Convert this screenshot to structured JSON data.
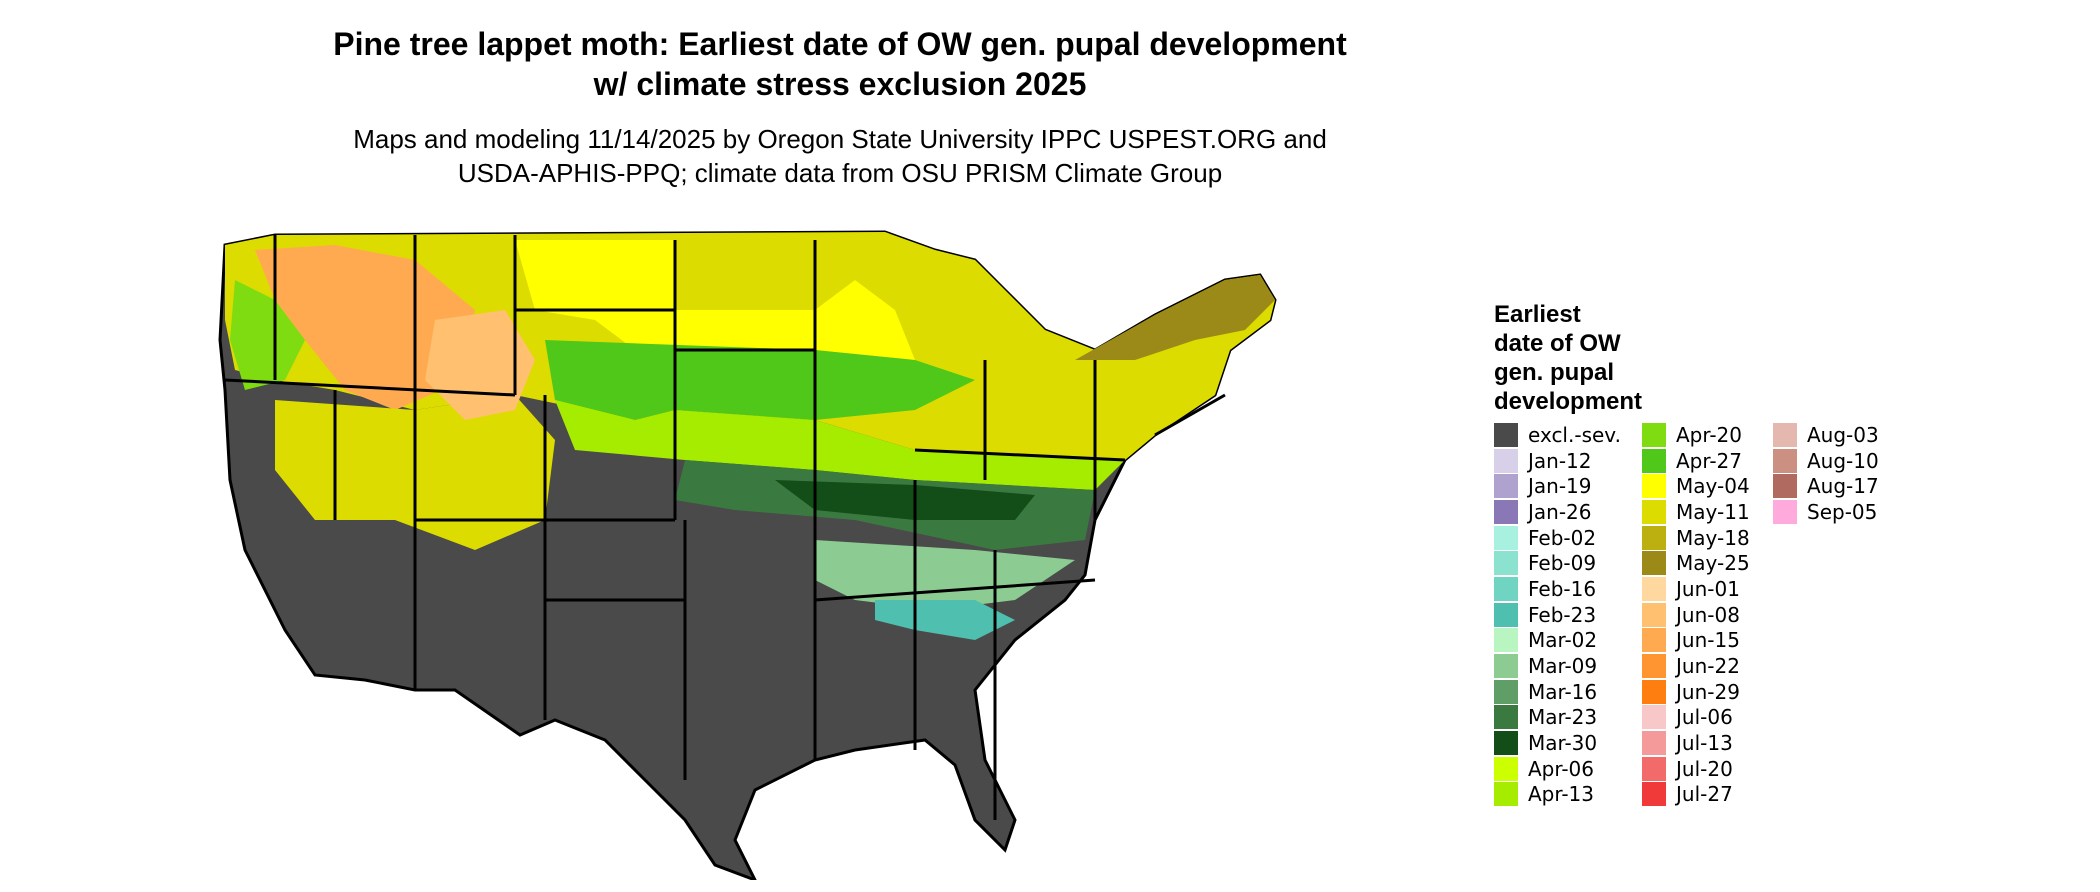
{
  "title_line1": "Pine tree lappet moth: Earliest date of OW gen. pupal development",
  "title_line2": "w/ climate stress exclusion 2025",
  "subtitle_line1": "Maps and modeling 11/14/2025 by Oregon State University IPPC USPEST.ORG and",
  "subtitle_line2": "USDA-APHIS-PPQ; climate data from OSU PRISM Climate Group",
  "legend": {
    "title_lines": [
      "Earliest",
      "date of OW",
      "gen. pupal",
      "development"
    ],
    "columns": [
      [
        {
          "label": "excl.-sev.",
          "color": "#4a4a4a"
        },
        {
          "label": "Jan-12",
          "color": "#d8d0e8"
        },
        {
          "label": "Jan-19",
          "color": "#b0a2cf"
        },
        {
          "label": "Jan-26",
          "color": "#8a78b6"
        },
        {
          "label": "Feb-02",
          "color": "#a8f0e0"
        },
        {
          "label": "Feb-09",
          "color": "#8ae2cf"
        },
        {
          "label": "Feb-16",
          "color": "#6fd4c2"
        },
        {
          "label": "Feb-23",
          "color": "#4fbfb0"
        },
        {
          "label": "Mar-02",
          "color": "#b8f5c0"
        },
        {
          "label": "Mar-09",
          "color": "#8ccc92"
        },
        {
          "label": "Mar-16",
          "color": "#5f9e66"
        },
        {
          "label": "Mar-23",
          "color": "#3a7a40"
        },
        {
          "label": "Mar-30",
          "color": "#134d17"
        },
        {
          "label": "Apr-06",
          "color": "#ccff00"
        },
        {
          "label": "Apr-13",
          "color": "#a6ec00"
        }
      ],
      [
        {
          "label": "Apr-20",
          "color": "#7fdc10"
        },
        {
          "label": "Apr-27",
          "color": "#4fc81a"
        },
        {
          "label": "May-04",
          "color": "#ffff00"
        },
        {
          "label": "May-11",
          "color": "#dcdc00"
        },
        {
          "label": "May-18",
          "color": "#bcb010"
        },
        {
          "label": "May-25",
          "color": "#9c8a18"
        },
        {
          "label": "Jun-01",
          "color": "#ffd8a0"
        },
        {
          "label": "Jun-08",
          "color": "#ffc070"
        },
        {
          "label": "Jun-15",
          "color": "#ffaa50"
        },
        {
          "label": "Jun-22",
          "color": "#ff9530"
        },
        {
          "label": "Jun-29",
          "color": "#ff7e10"
        },
        {
          "label": "Jul-06",
          "color": "#f8c8c8"
        },
        {
          "label": "Jul-13",
          "color": "#f59a9a"
        },
        {
          "label": "Jul-20",
          "color": "#f36a6a"
        },
        {
          "label": "Jul-27",
          "color": "#f03a3a"
        }
      ],
      [
        {
          "label": "Aug-03",
          "color": "#e4b8ae"
        },
        {
          "label": "Aug-10",
          "color": "#cc9082"
        },
        {
          "label": "Aug-17",
          "color": "#b06a60"
        },
        {
          "label": "Sep-05",
          "color": "#ffaadd"
        }
      ]
    ]
  }
}
